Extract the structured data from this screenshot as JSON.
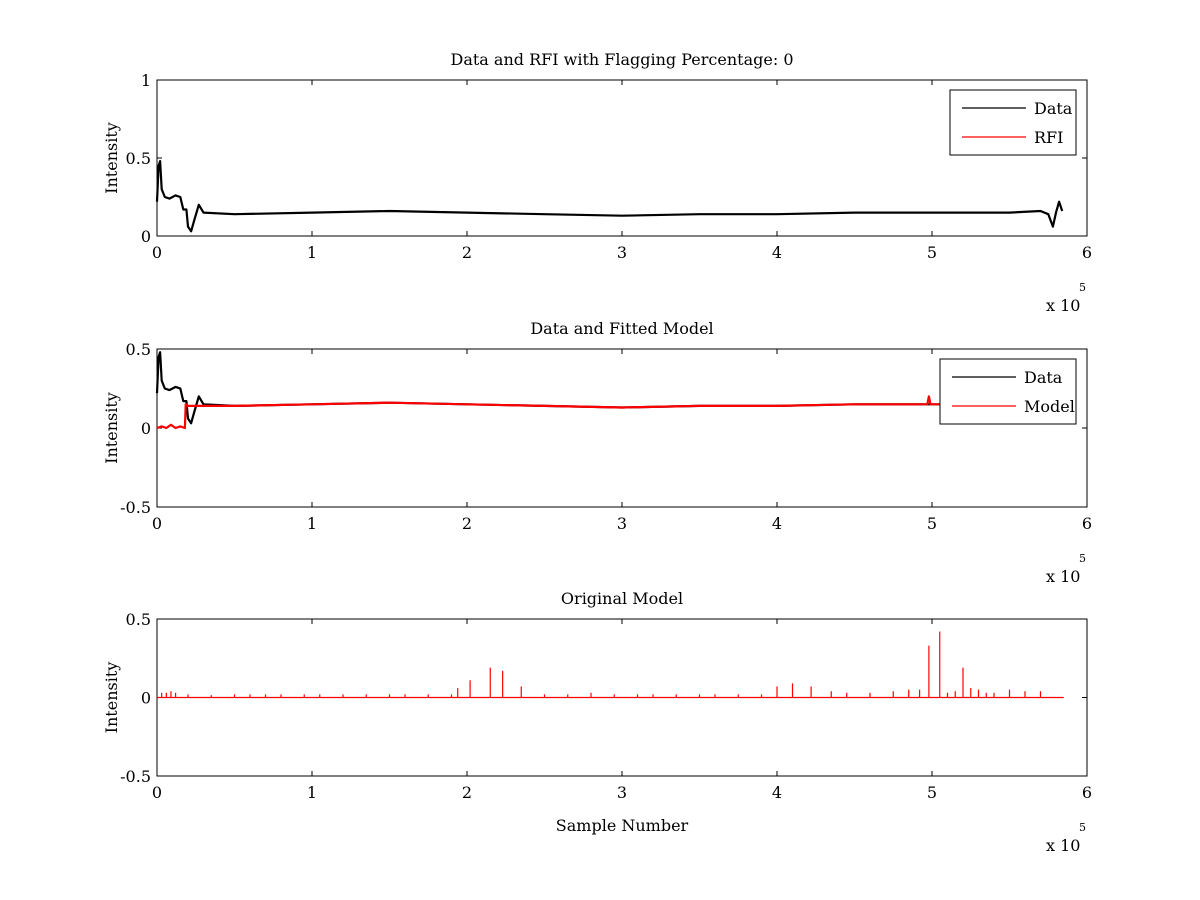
{
  "figure": {
    "exponent_base": "x 10",
    "exponent_power": "5"
  },
  "chart_data": [
    {
      "type": "line",
      "title": "Data and RFI with Flagging Percentage: 0",
      "xlabel": "",
      "ylabel": "Intensity",
      "xlim": [
        0,
        6
      ],
      "ylim": [
        0,
        1
      ],
      "xticks": [
        "0",
        "1",
        "2",
        "3",
        "4",
        "5",
        "6"
      ],
      "yticks": [
        "0",
        "0.5",
        "1"
      ],
      "x_scale_note": "x 10^5",
      "legend_position": "top-right",
      "series": [
        {
          "name": "Data",
          "color": "#000000",
          "x": [
            0,
            0.01,
            0.02,
            0.03,
            0.05,
            0.08,
            0.12,
            0.15,
            0.17,
            0.19,
            0.2,
            0.22,
            0.24,
            0.27,
            0.3,
            0.5,
            1,
            1.5,
            2,
            2.5,
            3,
            3.5,
            4,
            4.5,
            5,
            5.5,
            5.7,
            5.75,
            5.78,
            5.8,
            5.82,
            5.84
          ],
          "values": [
            0.22,
            0.45,
            0.48,
            0.3,
            0.25,
            0.24,
            0.26,
            0.25,
            0.17,
            0.17,
            0.06,
            0.03,
            0.1,
            0.2,
            0.15,
            0.14,
            0.15,
            0.16,
            0.15,
            0.14,
            0.13,
            0.14,
            0.14,
            0.15,
            0.15,
            0.15,
            0.16,
            0.14,
            0.06,
            0.15,
            0.22,
            0.16
          ]
        },
        {
          "name": "RFI",
          "color": "#ff0000",
          "x": [],
          "values": []
        }
      ]
    },
    {
      "type": "line",
      "title": "Data and Fitted Model",
      "xlabel": "",
      "ylabel": "Intensity",
      "xlim": [
        0,
        6
      ],
      "ylim": [
        -0.5,
        0.5
      ],
      "xticks": [
        "0",
        "1",
        "2",
        "3",
        "4",
        "5",
        "6"
      ],
      "yticks": [
        "-0.5",
        "0",
        "0.5"
      ],
      "x_scale_note": "x 10^5",
      "legend_position": "top-right",
      "series": [
        {
          "name": "Data",
          "color": "#000000",
          "x": [
            0,
            0.01,
            0.02,
            0.03,
            0.05,
            0.08,
            0.12,
            0.15,
            0.17,
            0.19,
            0.2,
            0.22,
            0.24,
            0.27,
            0.3,
            0.5,
            1,
            1.5,
            2,
            2.5,
            3,
            3.5,
            4,
            4.5,
            5,
            5.1
          ],
          "values": [
            0.22,
            0.45,
            0.48,
            0.3,
            0.25,
            0.24,
            0.26,
            0.25,
            0.17,
            0.17,
            0.06,
            0.03,
            0.1,
            0.2,
            0.15,
            0.14,
            0.15,
            0.16,
            0.15,
            0.14,
            0.13,
            0.14,
            0.14,
            0.15,
            0.15,
            0.15
          ]
        },
        {
          "name": "Model",
          "color": "#ff0000",
          "x": [
            0,
            0.03,
            0.06,
            0.09,
            0.12,
            0.15,
            0.18,
            0.185,
            0.2,
            0.3,
            0.5,
            1,
            1.5,
            2,
            2.5,
            3,
            3.5,
            4,
            4.5,
            4.97,
            4.98,
            4.99,
            5.1
          ],
          "values": [
            0.0,
            0.01,
            0.0,
            0.02,
            0.0,
            0.01,
            0.0,
            0.15,
            0.14,
            0.14,
            0.14,
            0.15,
            0.16,
            0.15,
            0.14,
            0.13,
            0.14,
            0.14,
            0.15,
            0.15,
            0.2,
            0.15,
            0.15
          ]
        }
      ]
    },
    {
      "type": "line",
      "title": "Original Model",
      "xlabel": "Sample Number",
      "ylabel": "Intensity",
      "xlim": [
        0,
        6
      ],
      "ylim": [
        -0.5,
        0.5
      ],
      "xticks": [
        "0",
        "1",
        "2",
        "3",
        "4",
        "5",
        "6"
      ],
      "yticks": [
        "-0.5",
        "0",
        "0.5"
      ],
      "x_scale_note": "x 10^5",
      "legend_position": "none",
      "baseline": 0.0,
      "x_end": 5.85,
      "series": [
        {
          "name": "",
          "color": "#ff0000",
          "spikes_x": [
            0.03,
            0.06,
            0.09,
            0.12,
            0.2,
            0.35,
            0.5,
            0.6,
            0.7,
            0.8,
            0.95,
            1.05,
            1.2,
            1.35,
            1.5,
            1.6,
            1.75,
            1.9,
            1.94,
            2.02,
            2.15,
            2.23,
            2.35,
            2.5,
            2.65,
            2.8,
            2.95,
            3.1,
            3.2,
            3.35,
            3.5,
            3.6,
            3.75,
            3.9,
            4.0,
            4.1,
            4.22,
            4.35,
            4.45,
            4.6,
            4.75,
            4.85,
            4.92,
            4.98,
            5.05,
            5.1,
            5.15,
            5.2,
            5.25,
            5.3,
            5.35,
            5.4,
            5.5,
            5.6,
            5.7
          ],
          "spikes_y": [
            0.03,
            0.03,
            0.04,
            0.03,
            0.02,
            0.015,
            0.02,
            0.02,
            0.02,
            0.02,
            0.02,
            0.02,
            0.02,
            0.02,
            0.02,
            0.02,
            0.02,
            0.02,
            0.06,
            0.11,
            0.19,
            0.17,
            0.07,
            0.02,
            0.02,
            0.03,
            0.02,
            0.02,
            0.02,
            0.02,
            0.02,
            0.02,
            0.02,
            0.02,
            0.07,
            0.09,
            0.07,
            0.04,
            0.03,
            0.03,
            0.04,
            0.05,
            0.05,
            0.33,
            0.42,
            0.03,
            0.04,
            0.19,
            0.06,
            0.05,
            0.03,
            0.03,
            0.05,
            0.04,
            0.04
          ]
        }
      ]
    }
  ]
}
